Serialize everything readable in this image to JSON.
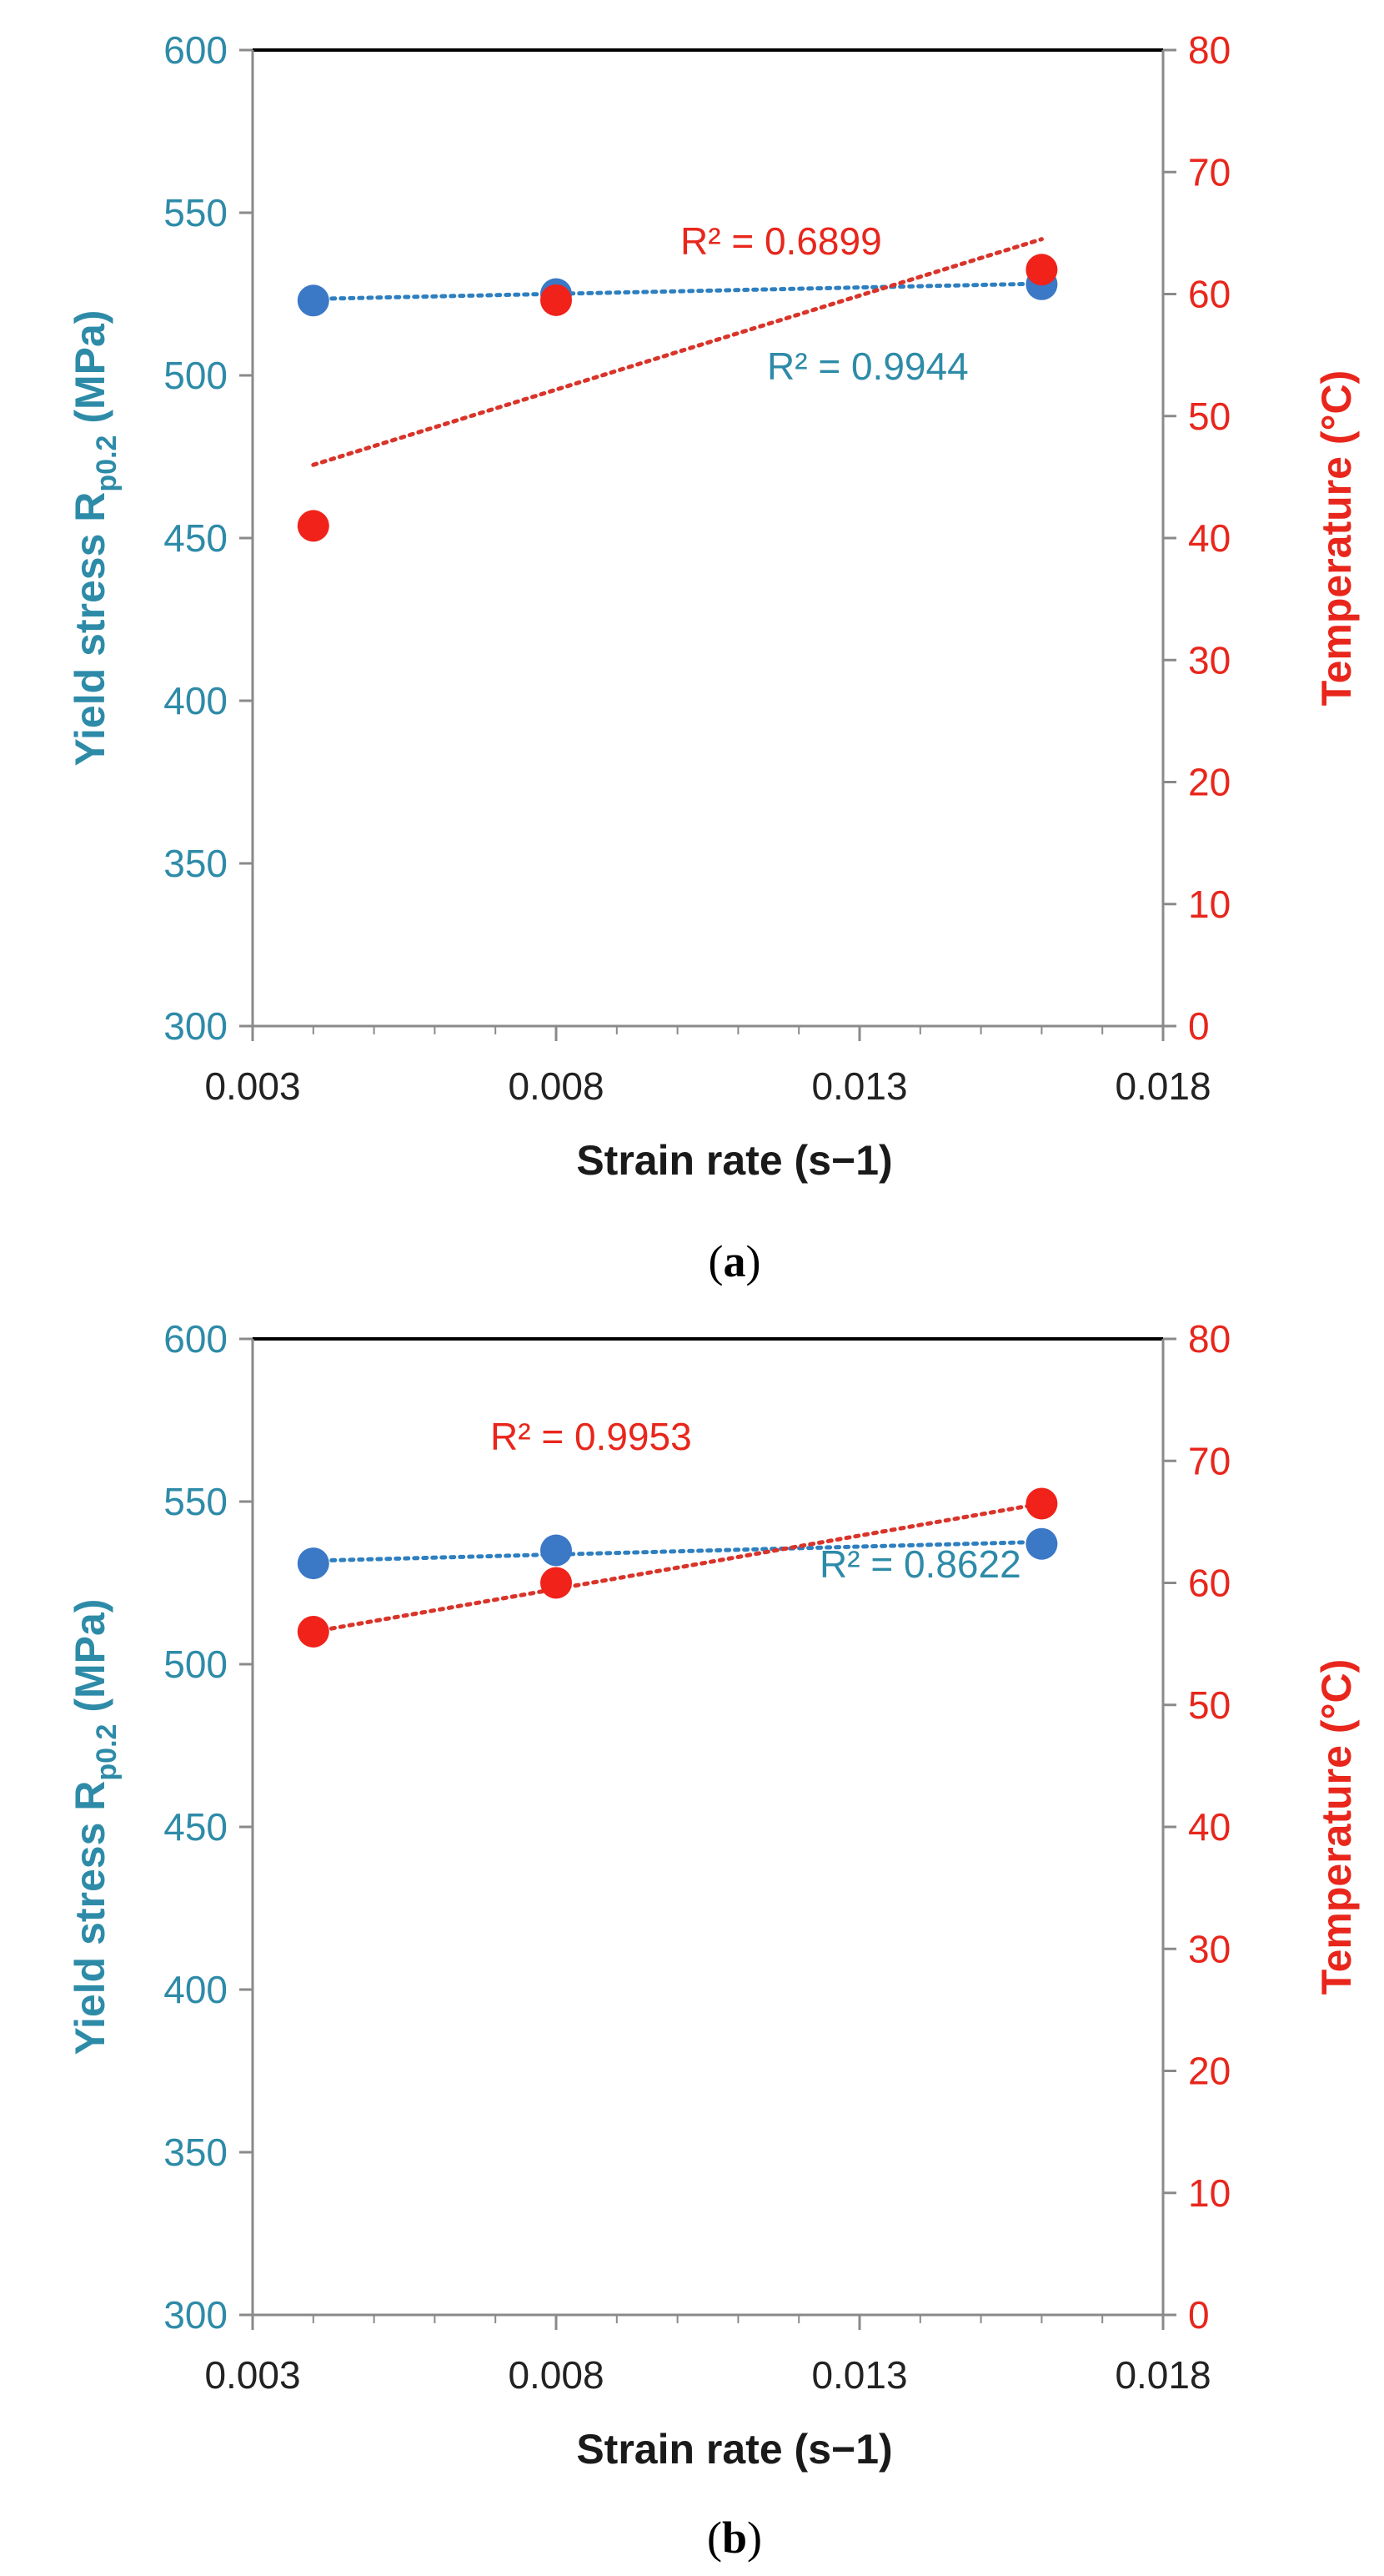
{
  "chart_data": [
    {
      "type": "scatter",
      "panel_label": "a",
      "caption": "(a)",
      "xlabel_main": "Strain rate",
      "xlabel_unit": "(s−1)",
      "ylabel_left_main": "Yield stress R",
      "ylabel_left_sub": "p0.2",
      "ylabel_left_unit": "(MPa)",
      "ylabel_right": "Temperature  (°C)",
      "xlim": [
        0.003,
        0.018
      ],
      "ylim_left": [
        300,
        600
      ],
      "ylim_right": [
        0,
        80
      ],
      "xticks": [
        "0.003",
        "0.008",
        "0.013",
        "0.018"
      ],
      "yticks_left": [
        "300",
        "350",
        "400",
        "450",
        "500",
        "550",
        "600"
      ],
      "yticks_right": [
        "0",
        "10",
        "20",
        "30",
        "40",
        "50",
        "60",
        "70",
        "80"
      ],
      "series": [
        {
          "name": "Yield stress",
          "axis": "left",
          "color": "#3b78c6",
          "x": [
            0.004,
            0.008,
            0.016
          ],
          "y": [
            523,
            525,
            528
          ],
          "trendline": {
            "from": [
              0.004,
              523.5
            ],
            "to": [
              0.016,
              528.2
            ]
          },
          "r2_label": "R² = 0.9944"
        },
        {
          "name": "Temperature",
          "axis": "right",
          "color": "#f0221a",
          "x": [
            0.004,
            0.008,
            0.016
          ],
          "y": [
            41,
            59.5,
            62
          ],
          "trendline": {
            "from": [
              0.004,
              46
            ],
            "to": [
              0.016,
              64.5
            ]
          },
          "r2_label": "R² = 0.6899"
        }
      ]
    },
    {
      "type": "scatter",
      "panel_label": "b",
      "caption": "(b)",
      "xlabel_main": "Strain rate",
      "xlabel_unit": "(s−1)",
      "ylabel_left_main": "Yield stress R",
      "ylabel_left_sub": "p0.2",
      "ylabel_left_unit": "(MPa)",
      "ylabel_right": "Temperature  (°C)",
      "xlim": [
        0.003,
        0.018
      ],
      "ylim_left": [
        300,
        600
      ],
      "ylim_right": [
        0,
        80
      ],
      "xticks": [
        "0.003",
        "0.008",
        "0.013",
        "0.018"
      ],
      "yticks_left": [
        "300",
        "350",
        "400",
        "450",
        "500",
        "550",
        "600"
      ],
      "yticks_right": [
        "0",
        "10",
        "20",
        "30",
        "40",
        "50",
        "60",
        "70",
        "80"
      ],
      "series": [
        {
          "name": "Yield stress",
          "axis": "left",
          "color": "#3b78c6",
          "x": [
            0.004,
            0.008,
            0.016
          ],
          "y": [
            531,
            535,
            537
          ],
          "trendline": {
            "from": [
              0.004,
              531.8
            ],
            "to": [
              0.016,
              537.6
            ]
          },
          "r2_label": "R² = 0.8622"
        },
        {
          "name": "Temperature",
          "axis": "right",
          "color": "#f0221a",
          "x": [
            0.004,
            0.008,
            0.016
          ],
          "y": [
            56,
            60,
            66.5
          ],
          "trendline": {
            "from": [
              0.004,
              56
            ],
            "to": [
              0.016,
              66.5
            ]
          },
          "r2_label": "R² = 0.9953"
        }
      ]
    }
  ]
}
